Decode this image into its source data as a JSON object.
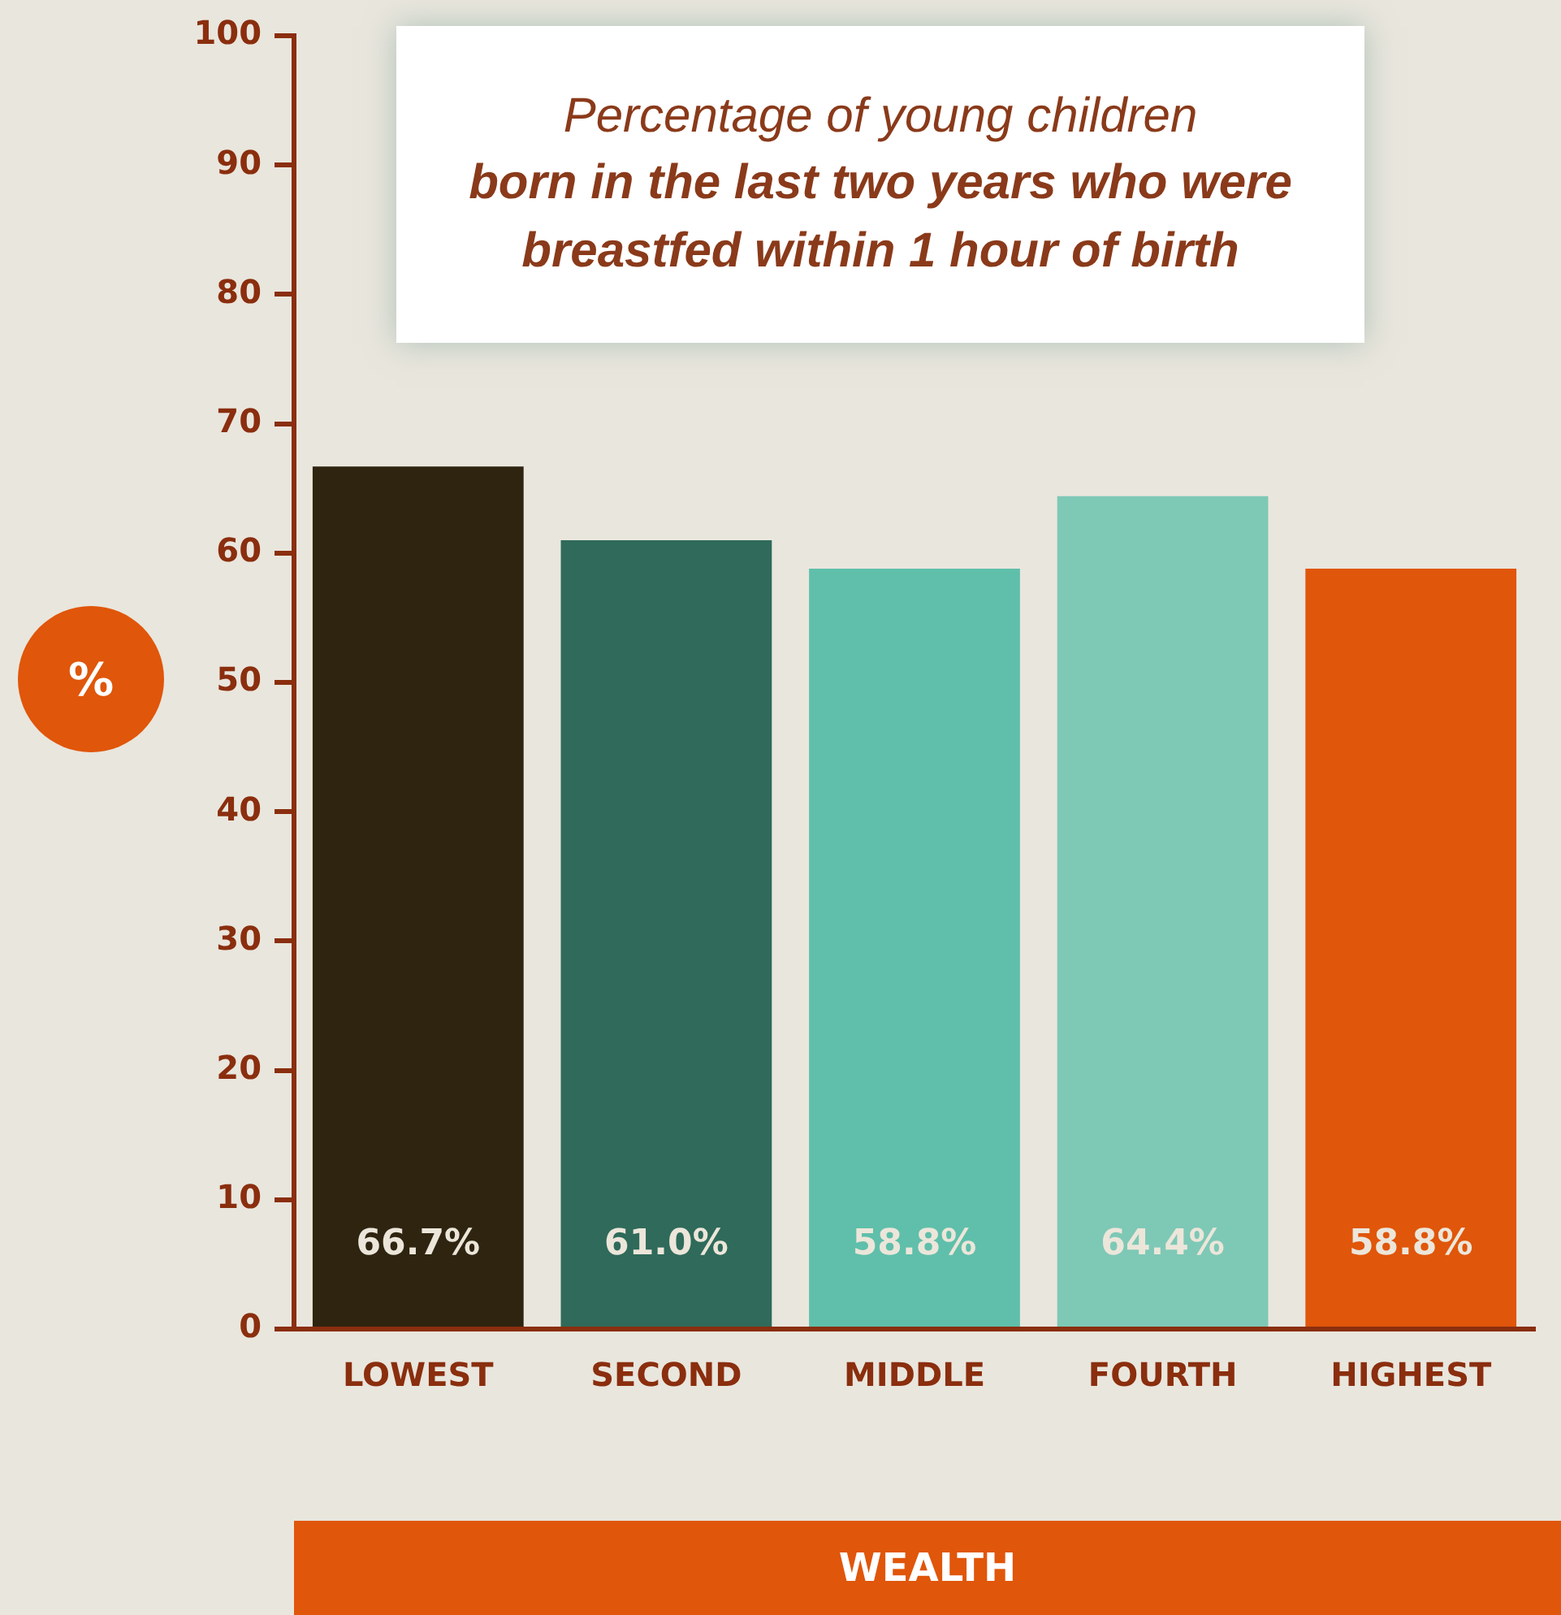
{
  "chart_data": {
    "type": "bar",
    "title": "Percentage of young children",
    "subtitle": "born in the last two years who were breastfed within 1 hour of birth",
    "xlabel": "WEALTH",
    "ylabel": "%",
    "categories": [
      "LOWEST",
      "SECOND",
      "MIDDLE",
      "FOURTH",
      "HIGHEST"
    ],
    "values": [
      66.7,
      61.0,
      58.8,
      64.4,
      58.8
    ],
    "colors": [
      "#2e2410",
      "#2f6a5a",
      "#5fbfaa",
      "#7ec8b6",
      "#e0560a"
    ],
    "value_labels": [
      "66.7%",
      "61.0%",
      "58.8%",
      "64.4%",
      "58.8%"
    ],
    "ylim": [
      0,
      100
    ],
    "yticks": [
      0,
      10,
      20,
      30,
      40,
      50,
      60,
      70,
      80,
      90,
      100
    ],
    "grid": false,
    "legend": false
  }
}
